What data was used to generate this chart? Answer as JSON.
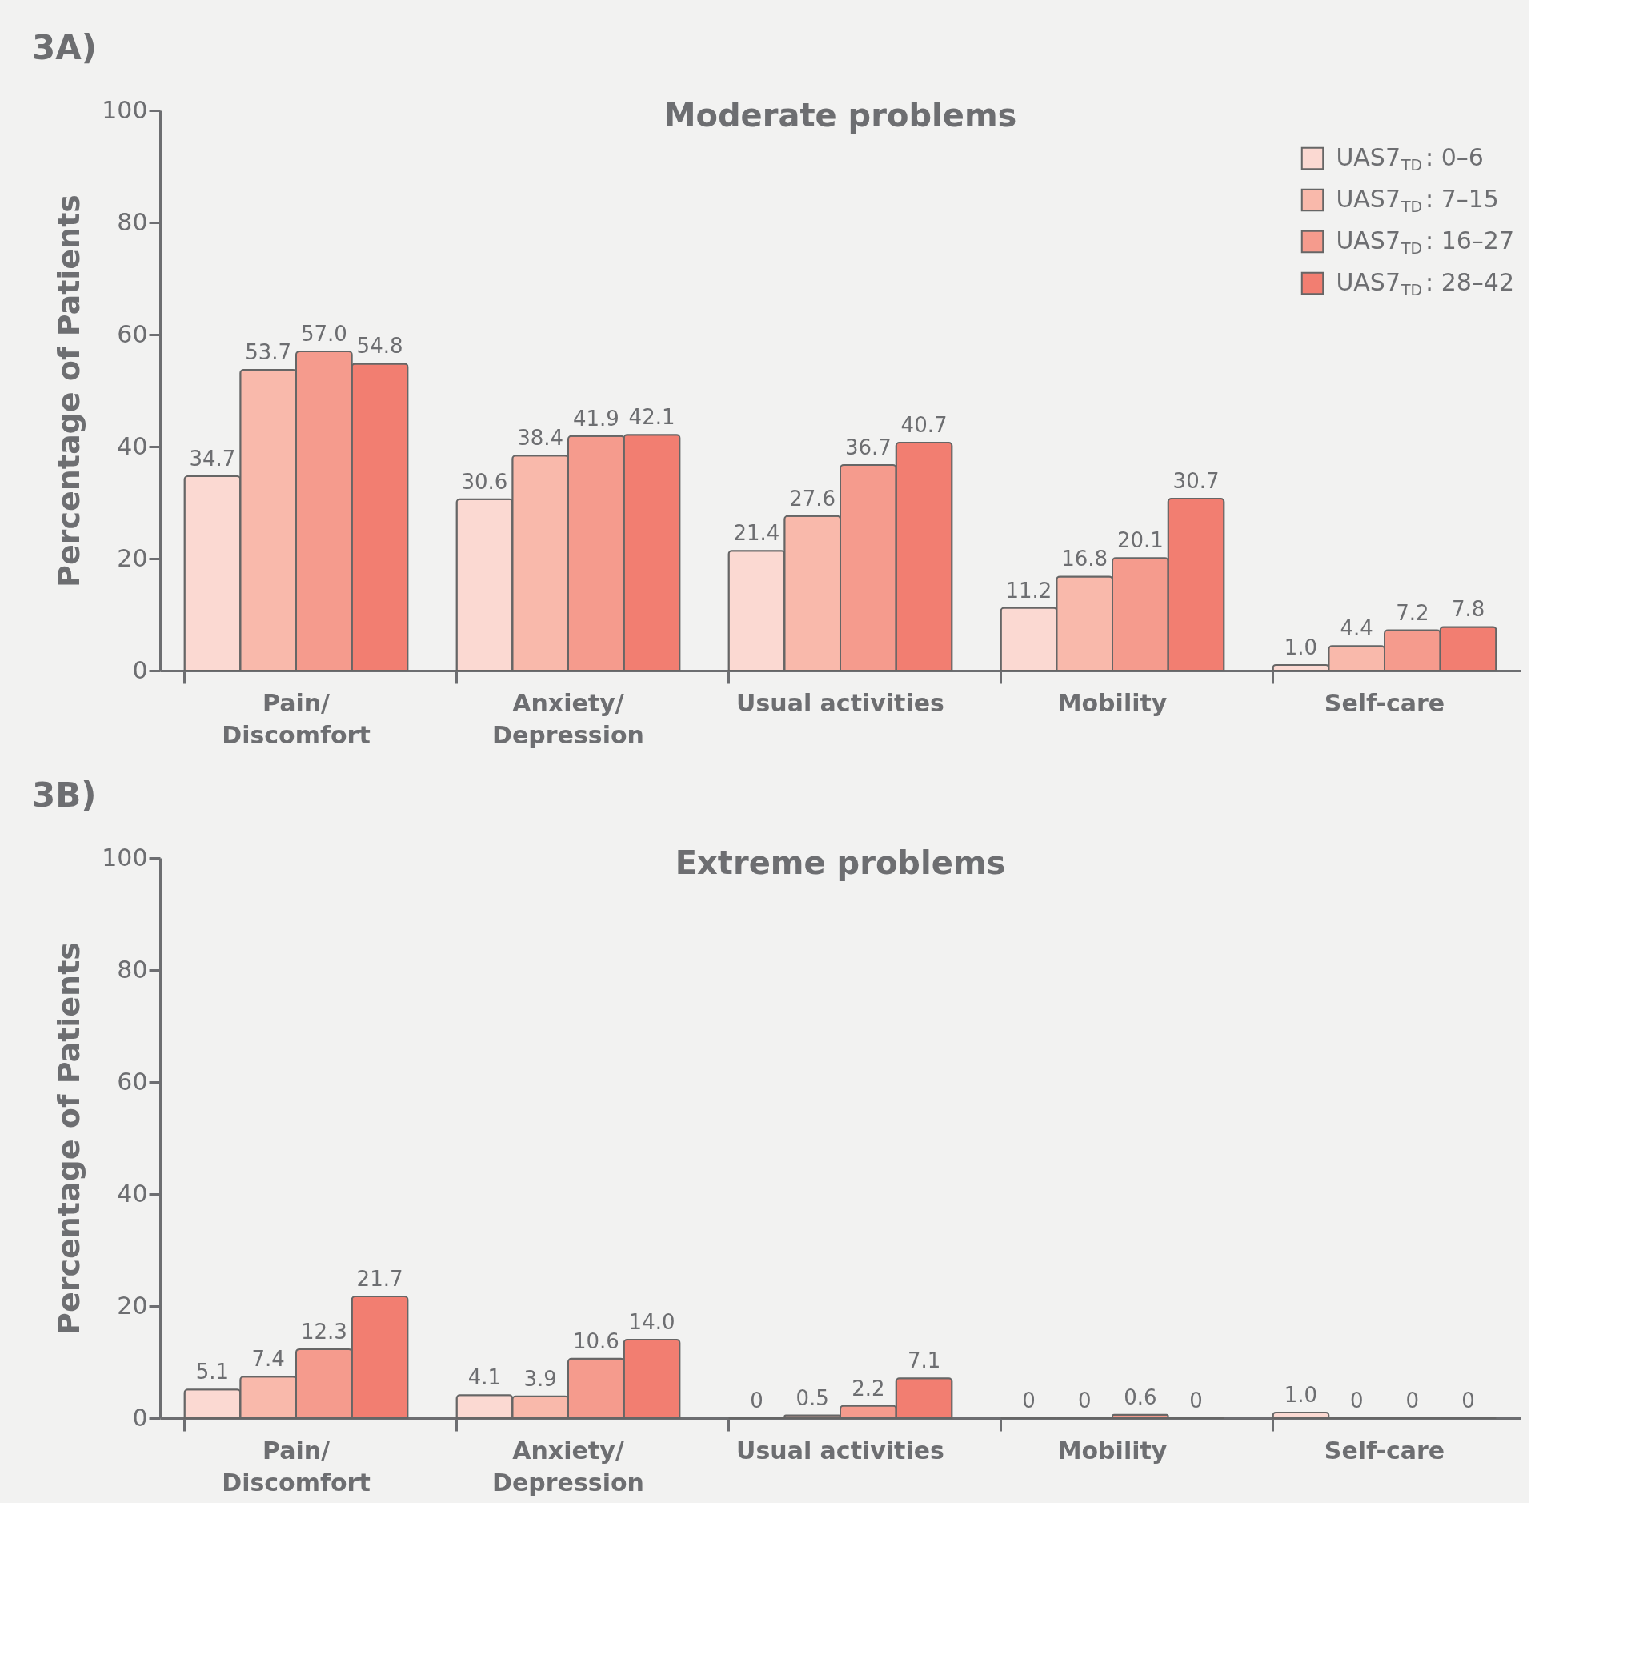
{
  "chart_data": [
    {
      "type": "bar",
      "title": "Moderate problems",
      "ylabel": "Percentage of Patients",
      "annotations": [
        "3A)"
      ],
      "categories": [
        "Pain/\nDiscomfort",
        "Anxiety/\nDepression",
        "Usual activities",
        "Mobility",
        "Self-care"
      ],
      "ylim": [
        0,
        100
      ],
      "yticks": [
        0,
        20,
        40,
        60,
        80,
        100
      ],
      "grid": false,
      "legend": "top right",
      "series": [
        {
          "name": "UAS7$_{TD}$: 0–6",
          "color": "#fbd9d2",
          "values": [
            34.7,
            30.6,
            21.4,
            11.2,
            1.0
          ],
          "value_labels": [
            "34.7",
            "30.6",
            "21.4",
            "11.2",
            "1.0"
          ]
        },
        {
          "name": "UAS7$_{TD}$: 7–15",
          "color": "#f9b9ab",
          "values": [
            53.7,
            38.4,
            27.6,
            16.8,
            4.4
          ],
          "value_labels": [
            "53.7",
            "38.4",
            "27.6",
            "16.8",
            "4.4"
          ]
        },
        {
          "name": "UAS7$_{TD}$: 16–27",
          "color": "#f59b8d",
          "values": [
            57.0,
            41.9,
            36.7,
            20.1,
            7.2
          ],
          "value_labels": [
            "57.0",
            "41.9",
            "36.7",
            "20.1",
            "7.2"
          ]
        },
        {
          "name": "UAS7$_{TD}$: 28–42",
          "color": "#f27e71",
          "values": [
            54.8,
            42.1,
            40.7,
            30.7,
            7.8
          ],
          "value_labels": [
            "54.8",
            "42.1",
            "40.7",
            "30.7",
            "7.8"
          ]
        }
      ]
    },
    {
      "type": "bar",
      "title": "Extreme problems",
      "ylabel": "Percentage of Patients",
      "annotations": [
        "3B)"
      ],
      "categories": [
        "Pain/\nDiscomfort",
        "Anxiety/\nDepression",
        "Usual activities",
        "Mobility",
        "Self-care"
      ],
      "ylim": [
        0,
        100
      ],
      "yticks": [
        0,
        20,
        40,
        60,
        80,
        100
      ],
      "grid": false,
      "series": [
        {
          "color": "#fbd9d2",
          "values": [
            5.1,
            4.1,
            0,
            0,
            1.0
          ],
          "value_labels": [
            "5.1",
            "4.1",
            "0",
            "0",
            "1.0"
          ]
        },
        {
          "color": "#f9b9ab",
          "values": [
            7.4,
            3.9,
            0.5,
            0,
            0
          ],
          "value_labels": [
            "7.4",
            "3.9",
            "0.5",
            "0",
            "0"
          ]
        },
        {
          "color": "#f59b8d",
          "values": [
            12.3,
            10.6,
            2.2,
            0.6,
            0
          ],
          "value_labels": [
            "12.3",
            "10.6",
            "2.2",
            "0.6",
            "0"
          ]
        },
        {
          "color": "#f27e71",
          "values": [
            21.7,
            14.0,
            7.1,
            0,
            0
          ],
          "value_labels": [
            "21.7",
            "14.0",
            "7.1",
            "0",
            "0"
          ]
        }
      ]
    }
  ]
}
